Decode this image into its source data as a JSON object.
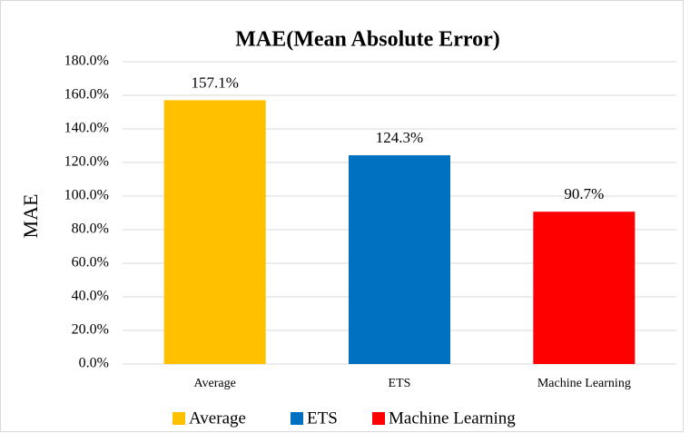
{
  "chart_data": {
    "type": "bar",
    "title": "MAE(Mean Absolute Error)",
    "y_label": "MAE",
    "categories": [
      "Average",
      "ETS",
      "Machine Learning"
    ],
    "values": [
      157.1,
      124.3,
      90.7
    ],
    "value_labels": [
      "157.1%",
      "124.3%",
      "90.7%"
    ],
    "colors": [
      "#ffc000",
      "#0070c0",
      "#ff0000"
    ],
    "ylim": [
      0,
      180
    ],
    "yticks": [
      {
        "value": 0,
        "label": "0.0%"
      },
      {
        "value": 20,
        "label": "20.0%"
      },
      {
        "value": 40,
        "label": "40.0%"
      },
      {
        "value": 60,
        "label": "60.0%"
      },
      {
        "value": 80,
        "label": "80.0%"
      },
      {
        "value": 100,
        "label": "100.0%"
      },
      {
        "value": 120,
        "label": "120.0%"
      },
      {
        "value": 140,
        "label": "140.0%"
      },
      {
        "value": 160,
        "label": "160.0%"
      },
      {
        "value": 180,
        "label": "180.0%"
      }
    ],
    "grid": true,
    "legend": "bottom"
  }
}
